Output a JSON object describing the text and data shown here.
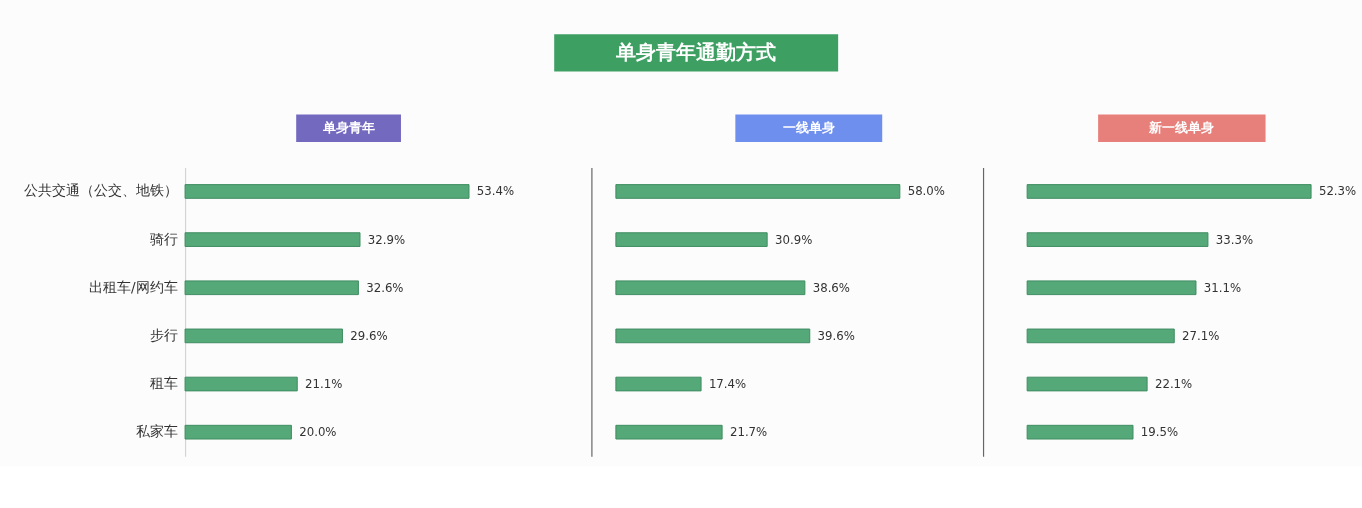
{
  "chart_data": [
    {
      "type": "other",
      "title": "单身青年通勤方式"
    },
    {
      "type": "bar",
      "orientation": "horizontal",
      "title": "单身青年",
      "categories": [
        "公共交通（公交、地铁）",
        "骑行",
        "出租车/网约车",
        "步行",
        "租车",
        "私家车"
      ],
      "values": [
        53.4,
        32.9,
        32.6,
        29.6,
        21.1,
        20.0
      ],
      "value_labels": [
        "53.4%",
        "32.9%",
        "32.6%",
        "29.6%",
        "21.1%",
        "20.0%"
      ],
      "color": "#55a878",
      "tick_labels": "y"
    },
    {
      "type": "bar",
      "orientation": "horizontal",
      "title": "一线单身",
      "categories": [
        null,
        null,
        null,
        null,
        null,
        null
      ],
      "values": [
        58.0,
        30.9,
        38.6,
        39.6,
        17.4,
        21.7
      ],
      "value_labels": [
        "58.0%",
        "30.9%",
        "38.6%",
        "39.6%",
        "17.4%",
        "21.7%"
      ],
      "color": "#55a878",
      "tick_labels": false
    },
    {
      "type": "bar",
      "orientation": "horizontal",
      "title": "新一线单身",
      "categories": [
        null,
        null,
        null,
        null,
        null,
        null
      ],
      "values": [
        52.3,
        33.3,
        31.1,
        27.1,
        22.1,
        19.5
      ],
      "value_labels": [
        "52.3%",
        "33.3%",
        "31.1%",
        "27.1%",
        "22.1%",
        "19.5%"
      ],
      "color": "#55a878",
      "tick_labels": false
    }
  ]
}
